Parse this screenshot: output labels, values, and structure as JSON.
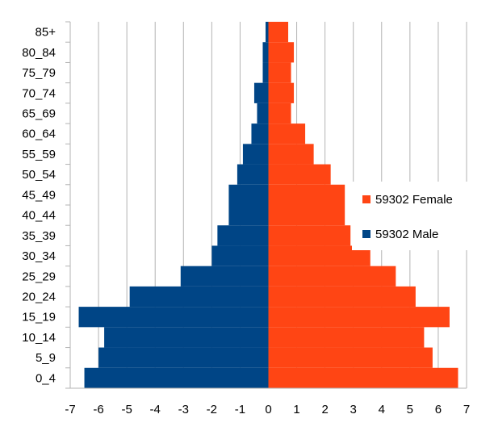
{
  "chart_data": {
    "type": "bar",
    "orientation": "horizontal",
    "categories": [
      "0_4",
      "5_9",
      "10_14",
      "15_19",
      "20_24",
      "25_29",
      "30_34",
      "35_39",
      "40_44",
      "45_49",
      "50_54",
      "55_59",
      "60_64",
      "65_69",
      "70_74",
      "75_79",
      "80_84",
      "85+"
    ],
    "series": [
      {
        "name": "59302 Female",
        "color": "#FF4514",
        "values": [
          6.7,
          5.8,
          5.5,
          6.4,
          5.2,
          4.5,
          3.6,
          2.9,
          2.7,
          2.7,
          2.2,
          1.6,
          1.3,
          0.8,
          0.9,
          0.8,
          0.9,
          0.7
        ]
      },
      {
        "name": "59302 Male",
        "color": "#004586",
        "values": [
          -6.5,
          -6.0,
          -5.8,
          -6.7,
          -4.9,
          -3.1,
          -2.0,
          -1.8,
          -1.4,
          -1.4,
          -1.1,
          -0.9,
          -0.6,
          -0.4,
          -0.5,
          -0.2,
          -0.2,
          -0.1
        ]
      }
    ],
    "xlim": [
      -7,
      7
    ],
    "xticks": [
      "-7",
      "-6",
      "-5",
      "-4",
      "-3",
      "-2",
      "-1",
      "0",
      "1",
      "2",
      "3",
      "4",
      "5",
      "6",
      "7"
    ],
    "grid": "vertical",
    "legend": "right",
    "title": "",
    "xlabel": "",
    "ylabel": ""
  }
}
